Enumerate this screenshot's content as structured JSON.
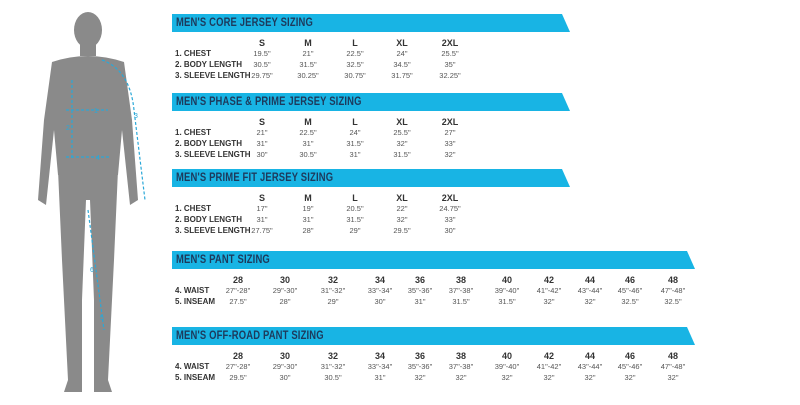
{
  "colors": {
    "banner": "#18b4e4",
    "banner_text": "#1d3a5c",
    "figure": "#8a8a8a",
    "measure_lines": "#2aa8d8"
  },
  "figure": {
    "markers": [
      "1",
      "2",
      "3",
      "4",
      "5",
      "6"
    ]
  },
  "tables": [
    {
      "title": "MEN'S CORE JERSEY SIZING",
      "sizes": [
        "S",
        "M",
        "L",
        "XL",
        "2XL"
      ],
      "rows": [
        {
          "label": "1. CHEST",
          "values": [
            "19.5\"",
            "21\"",
            "22.5\"",
            "24\"",
            "25.5\""
          ]
        },
        {
          "label": "2. BODY LENGTH",
          "values": [
            "30.5\"",
            "31.5\"",
            "32.5\"",
            "34.5\"",
            "35\""
          ]
        },
        {
          "label": "3. SLEEVE LENGTH",
          "values": [
            "29.75\"",
            "30.25\"",
            "30.75\"",
            "31.75\"",
            "32.25\""
          ]
        }
      ]
    },
    {
      "title": "MEN'S PHASE & PRIME JERSEY SIZING",
      "sizes": [
        "S",
        "M",
        "L",
        "XL",
        "2XL"
      ],
      "rows": [
        {
          "label": "1. CHEST",
          "values": [
            "21\"",
            "22.5\"",
            "24\"",
            "25.5\"",
            "27\""
          ]
        },
        {
          "label": "2. BODY LENGTH",
          "values": [
            "31\"",
            "31\"",
            "31.5\"",
            "32\"",
            "33\""
          ]
        },
        {
          "label": "3. SLEEVE LENGTH",
          "values": [
            "30\"",
            "30.5\"",
            "31\"",
            "31.5\"",
            "32\""
          ]
        }
      ]
    },
    {
      "title": "MEN'S PRIME FIT JERSEY SIZING",
      "sizes": [
        "S",
        "M",
        "L",
        "XL",
        "2XL"
      ],
      "rows": [
        {
          "label": "1. CHEST",
          "values": [
            "17\"",
            "19\"",
            "20.5\"",
            "22\"",
            "24.75\""
          ]
        },
        {
          "label": "2. BODY LENGTH",
          "values": [
            "31\"",
            "31\"",
            "31.5\"",
            "32\"",
            "33\""
          ]
        },
        {
          "label": "3. SLEEVE LENGTH",
          "values": [
            "27.75\"",
            "28\"",
            "29\"",
            "29.5\"",
            "30\""
          ]
        }
      ]
    },
    {
      "title": "MEN'S PANT SIZING",
      "sizes": [
        "28",
        "30",
        "32",
        "34",
        "36",
        "38",
        "40",
        "42",
        "44",
        "46",
        "48"
      ],
      "rows": [
        {
          "label": "4. WAIST",
          "values": [
            "27\"-28\"",
            "29\"-30\"",
            "31\"-32\"",
            "33\"-34\"",
            "35\"-36\"",
            "37\"-38\"",
            "39\"-40\"",
            "41\"-42\"",
            "43\"-44\"",
            "45\"-46\"",
            "47\"-48\""
          ]
        },
        {
          "label": "5. INSEAM",
          "values": [
            "27.5\"",
            "28\"",
            "29\"",
            "30\"",
            "31\"",
            "31.5\"",
            "31.5\"",
            "32\"",
            "32\"",
            "32.5\"",
            "32.5\""
          ]
        }
      ]
    },
    {
      "title": "MEN'S OFF-ROAD PANT SIZING",
      "sizes": [
        "28",
        "30",
        "32",
        "34",
        "36",
        "38",
        "40",
        "42",
        "44",
        "46",
        "48"
      ],
      "rows": [
        {
          "label": "4. WAIST",
          "values": [
            "27\"-28\"",
            "29\"-30\"",
            "31\"-32\"",
            "33\"-34\"",
            "35\"-36\"",
            "37\"-38\"",
            "39\"-40\"",
            "41\"-42\"",
            "43\"-44\"",
            "45\"-46\"",
            "47\"-48\""
          ]
        },
        {
          "label": "5. INSEAM",
          "values": [
            "29.5\"",
            "30\"",
            "30.5\"",
            "31\"",
            "32\"",
            "32\"",
            "32\"",
            "32\"",
            "32\"",
            "32\"",
            "32\""
          ]
        }
      ]
    }
  ]
}
